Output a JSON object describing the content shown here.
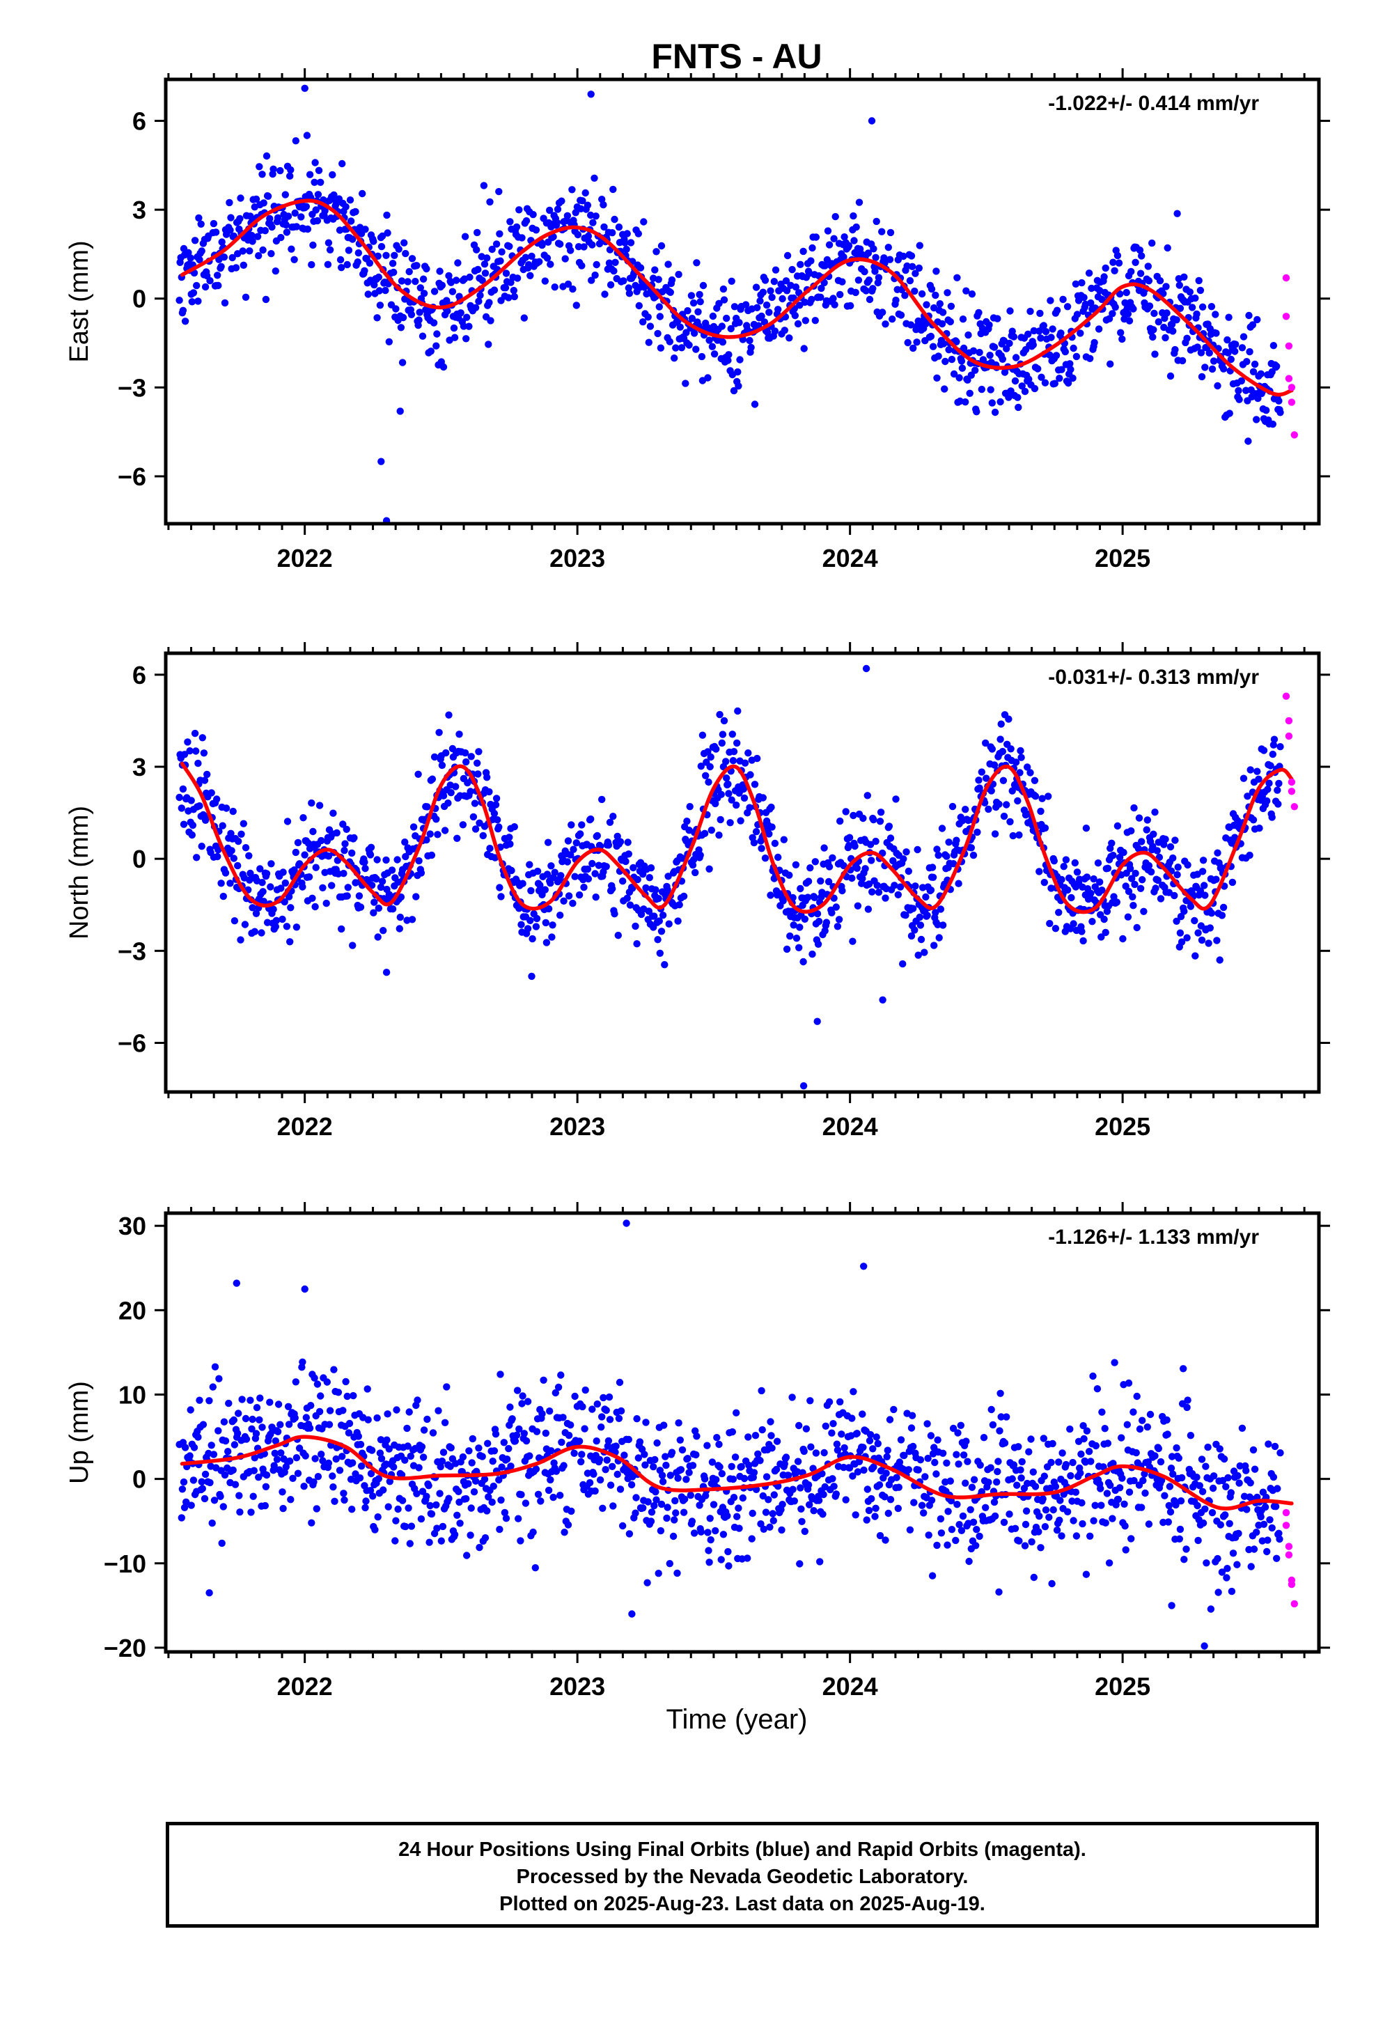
{
  "title": "FNTS - AU",
  "x_label": "Time (year)",
  "footer": {
    "line1": "24 Hour Positions Using Final Orbits (blue) and Rapid Orbits (magenta).",
    "line2": "Processed by the Nevada Geodetic Laboratory.",
    "line3": "Plotted on 2025-Aug-23. Last data on 2025-Aug-19."
  },
  "colors": {
    "final": "#0000ff",
    "rapid": "#ff00ff",
    "model": "#ff0000",
    "axes": "#000000"
  },
  "chart_data": [
    {
      "type": "scatter",
      "component": "east",
      "ylabel": "East (mm)",
      "rate_label": "-1.022+/- 0.414 mm/yr",
      "xlim": [
        2021.49,
        2025.72
      ],
      "ylim": [
        -7.6,
        7.4
      ],
      "yticks": [
        -6,
        -3,
        0,
        3,
        6
      ],
      "ytick_labels": [
        "−6",
        "−3",
        "0",
        "3",
        "6"
      ],
      "xticks": [
        2022,
        2023,
        2024,
        2025
      ],
      "xtick_labels": [
        "2022",
        "2023",
        "2024",
        "2025"
      ],
      "data_start": 2021.54,
      "last_final": 2025.58,
      "model": {
        "x": [
          2021.55,
          2021.7,
          2021.85,
          2022.0,
          2022.1,
          2022.2,
          2022.35,
          2022.5,
          2022.65,
          2022.8,
          2022.9,
          2023.0,
          2023.1,
          2023.25,
          2023.4,
          2023.55,
          2023.7,
          2023.85,
          2024.0,
          2024.15,
          2024.3,
          2024.45,
          2024.6,
          2024.75,
          2024.9,
          2025.0,
          2025.1,
          2025.25,
          2025.4,
          2025.55,
          2025.62
        ],
        "y": [
          0.8,
          1.6,
          2.8,
          3.3,
          3.0,
          2.0,
          0.3,
          -0.3,
          0.4,
          1.6,
          2.2,
          2.4,
          2.0,
          0.6,
          -0.8,
          -1.3,
          -0.9,
          0.3,
          1.3,
          0.9,
          -0.8,
          -2.1,
          -2.3,
          -1.6,
          -0.5,
          0.4,
          0.3,
          -0.9,
          -2.3,
          -3.2,
          -3.1
        ]
      },
      "scatter_sd": 0.9,
      "outliers": [
        [
          2022.0,
          7.1
        ],
        [
          2022.3,
          -7.5
        ],
        [
          2022.28,
          -5.5
        ],
        [
          2022.35,
          -3.8
        ],
        [
          2024.08,
          6.0
        ],
        [
          2023.05,
          6.9
        ]
      ],
      "rapid": {
        "x": [
          2025.6,
          2025.6,
          2025.61,
          2025.61,
          2025.62,
          2025.62,
          2025.63
        ],
        "y": [
          0.7,
          -0.6,
          -1.6,
          -2.7,
          -3.0,
          -3.5,
          -4.6
        ]
      },
      "seed": 11
    },
    {
      "type": "scatter",
      "component": "north",
      "ylabel": "North (mm)",
      "rate_label": "-0.031+/- 0.313 mm/yr",
      "xlim": [
        2021.49,
        2025.72
      ],
      "ylim": [
        -7.6,
        6.7
      ],
      "yticks": [
        -6,
        -3,
        0,
        3,
        6
      ],
      "ytick_labels": [
        "−6",
        "−3",
        "0",
        "3",
        "6"
      ],
      "xticks": [
        2022,
        2023,
        2024,
        2025
      ],
      "xtick_labels": [
        "2022",
        "2023",
        "2024",
        "2025"
      ],
      "data_start": 2021.54,
      "last_final": 2025.58,
      "model": {
        "x": [
          2021.55,
          2021.62,
          2021.7,
          2021.8,
          2021.9,
          2022.0,
          2022.08,
          2022.15,
          2022.25,
          2022.32,
          2022.42,
          2022.5,
          2022.58,
          2022.65,
          2022.72,
          2022.8,
          2022.9,
          2023.0,
          2023.08,
          2023.15,
          2023.25,
          2023.32,
          2023.42,
          2023.5,
          2023.58,
          2023.65,
          2023.72,
          2023.8,
          2023.9,
          2024.0,
          2024.08,
          2024.15,
          2024.25,
          2024.32,
          2024.42,
          2024.5,
          2024.58,
          2024.65,
          2024.72,
          2024.8,
          2024.9,
          2025.0,
          2025.08,
          2025.15,
          2025.25,
          2025.32,
          2025.42,
          2025.5,
          2025.58,
          2025.62
        ],
        "y": [
          3.1,
          2.1,
          0.3,
          -1.3,
          -1.4,
          -0.2,
          0.3,
          -0.1,
          -1.1,
          -1.4,
          0.4,
          2.4,
          3.0,
          1.9,
          -0.1,
          -1.5,
          -1.4,
          -0.1,
          0.3,
          -0.2,
          -1.2,
          -1.5,
          0.4,
          2.3,
          3.0,
          1.8,
          -0.2,
          -1.6,
          -1.5,
          -0.2,
          0.2,
          -0.3,
          -1.3,
          -1.5,
          0.3,
          2.3,
          3.0,
          1.9,
          0.0,
          -1.5,
          -1.6,
          -0.2,
          0.2,
          -0.3,
          -1.3,
          -1.5,
          0.5,
          2.3,
          2.9,
          2.6
        ]
      },
      "scatter_sd": 0.85,
      "outliers": [
        [
          2024.06,
          6.2
        ],
        [
          2023.83,
          -7.4
        ],
        [
          2023.88,
          -5.3
        ],
        [
          2022.3,
          -3.7
        ],
        [
          2024.12,
          -4.6
        ]
      ],
      "rapid": {
        "x": [
          2025.6,
          2025.61,
          2025.61,
          2025.62,
          2025.62,
          2025.63
        ],
        "y": [
          5.3,
          4.5,
          4.0,
          2.5,
          2.2,
          1.7
        ]
      },
      "seed": 23
    },
    {
      "type": "scatter",
      "component": "up",
      "ylabel": "Up (mm)",
      "rate_label": "-1.126+/- 1.133 mm/yr",
      "xlim": [
        2021.49,
        2025.72
      ],
      "ylim": [
        -20.5,
        31.5
      ],
      "yticks": [
        -20,
        -10,
        0,
        10,
        20,
        30
      ],
      "ytick_labels": [
        "−20",
        "−10",
        "0",
        "10",
        "20",
        "30"
      ],
      "xticks": [
        2022,
        2023,
        2024,
        2025
      ],
      "xtick_labels": [
        "2022",
        "2023",
        "2024",
        "2025"
      ],
      "data_start": 2021.54,
      "last_final": 2025.58,
      "model": {
        "x": [
          2021.55,
          2021.75,
          2021.9,
          2022.0,
          2022.15,
          2022.3,
          2022.5,
          2022.7,
          2022.85,
          2023.0,
          2023.15,
          2023.3,
          2023.5,
          2023.7,
          2023.85,
          2024.0,
          2024.15,
          2024.35,
          2024.55,
          2024.75,
          2024.9,
          2025.0,
          2025.15,
          2025.35,
          2025.5,
          2025.62
        ],
        "y": [
          1.8,
          2.5,
          4.0,
          5.0,
          3.8,
          0.3,
          0.4,
          0.6,
          1.8,
          3.8,
          2.5,
          -1.0,
          -1.2,
          -0.6,
          0.5,
          2.6,
          1.2,
          -2.0,
          -1.8,
          -1.6,
          0.4,
          1.5,
          0.3,
          -3.4,
          -2.6,
          -2.9
        ]
      },
      "scatter_sd": 4.2,
      "outliers": [
        [
          2023.18,
          30.3
        ],
        [
          2022.0,
          22.5
        ],
        [
          2021.75,
          23.2
        ],
        [
          2024.05,
          25.2
        ],
        [
          2023.2,
          -16.0
        ],
        [
          2025.3,
          -19.8
        ],
        [
          2025.18,
          -15.0
        ],
        [
          2021.65,
          -13.5
        ]
      ],
      "rapid": {
        "x": [
          2025.6,
          2025.6,
          2025.61,
          2025.61,
          2025.62,
          2025.62,
          2025.63
        ],
        "y": [
          -4.0,
          -5.5,
          -8.0,
          -9.0,
          -12.0,
          -12.5,
          -14.8
        ]
      },
      "seed": 37
    }
  ]
}
